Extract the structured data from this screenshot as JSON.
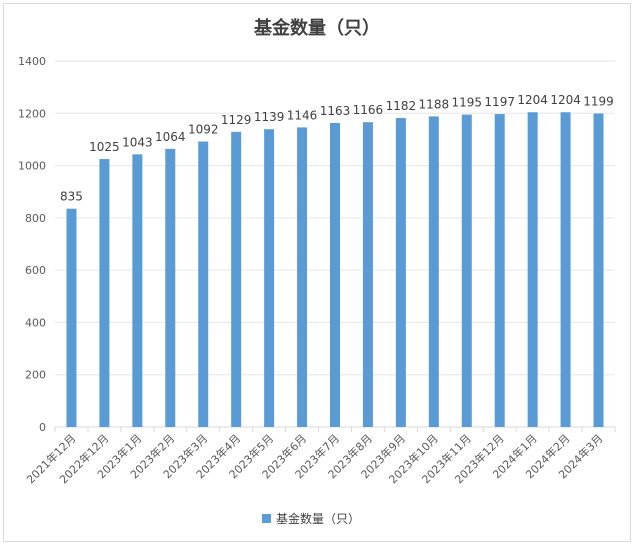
{
  "chart_data": {
    "type": "bar",
    "title": "基金数量（只）",
    "xlabel": "",
    "ylabel": "",
    "ylim": [
      0,
      1400
    ],
    "yticks": [
      0,
      200,
      400,
      600,
      800,
      1000,
      1200,
      1400
    ],
    "grid": true,
    "legend_position": "bottom",
    "color": "#5b9bd5",
    "categories": [
      "2021年12月",
      "2022年12月",
      "2023年1月",
      "2023年2月",
      "2023年3月",
      "2023年4月",
      "2023年5月",
      "2023年6月",
      "2023年7月",
      "2023年8月",
      "2023年9月",
      "2023年10月",
      "2023年11月",
      "2023年12月",
      "2024年1月",
      "2024年2月",
      "2024年3月"
    ],
    "series": [
      {
        "name": "基金数量（只）",
        "values": [
          835,
          1025,
          1043,
          1064,
          1092,
          1129,
          1139,
          1146,
          1163,
          1166,
          1182,
          1188,
          1195,
          1197,
          1204,
          1204,
          1199
        ]
      }
    ]
  }
}
